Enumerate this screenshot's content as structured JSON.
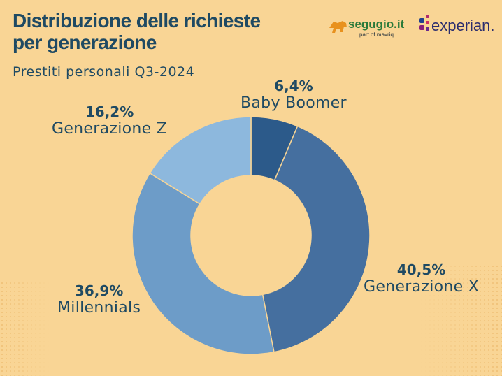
{
  "header": {
    "title_line1": "Distribuzione delle richieste",
    "title_line2": "per generazione",
    "subtitle": "Prestiti personali Q3-2024"
  },
  "logos": {
    "segugio_text": "segugio.it",
    "segugio_tagline": "part of mavriq.",
    "experian_text": "experian."
  },
  "colors": {
    "background": "#f9d595",
    "text": "#1f4a63",
    "segugio_green": "#2a7a3a",
    "segugio_orange": "#e8911e"
  },
  "chart_data": {
    "type": "pie",
    "variant": "donut",
    "title": "Distribuzione delle richieste per generazione",
    "subtitle": "Prestiti personali Q3-2024",
    "categories": [
      "Baby Boomer",
      "Generazione X",
      "Millennials",
      "Generazione Z"
    ],
    "values": [
      6.4,
      40.5,
      36.9,
      16.2
    ],
    "labels": [
      "6,4%",
      "40,5%",
      "36,9%",
      "16,2%"
    ],
    "colors": [
      "#2c5a8a",
      "#456f9f",
      "#6d9cc8",
      "#8db8dd"
    ],
    "start_angle_deg": 0,
    "direction": "clockwise"
  }
}
